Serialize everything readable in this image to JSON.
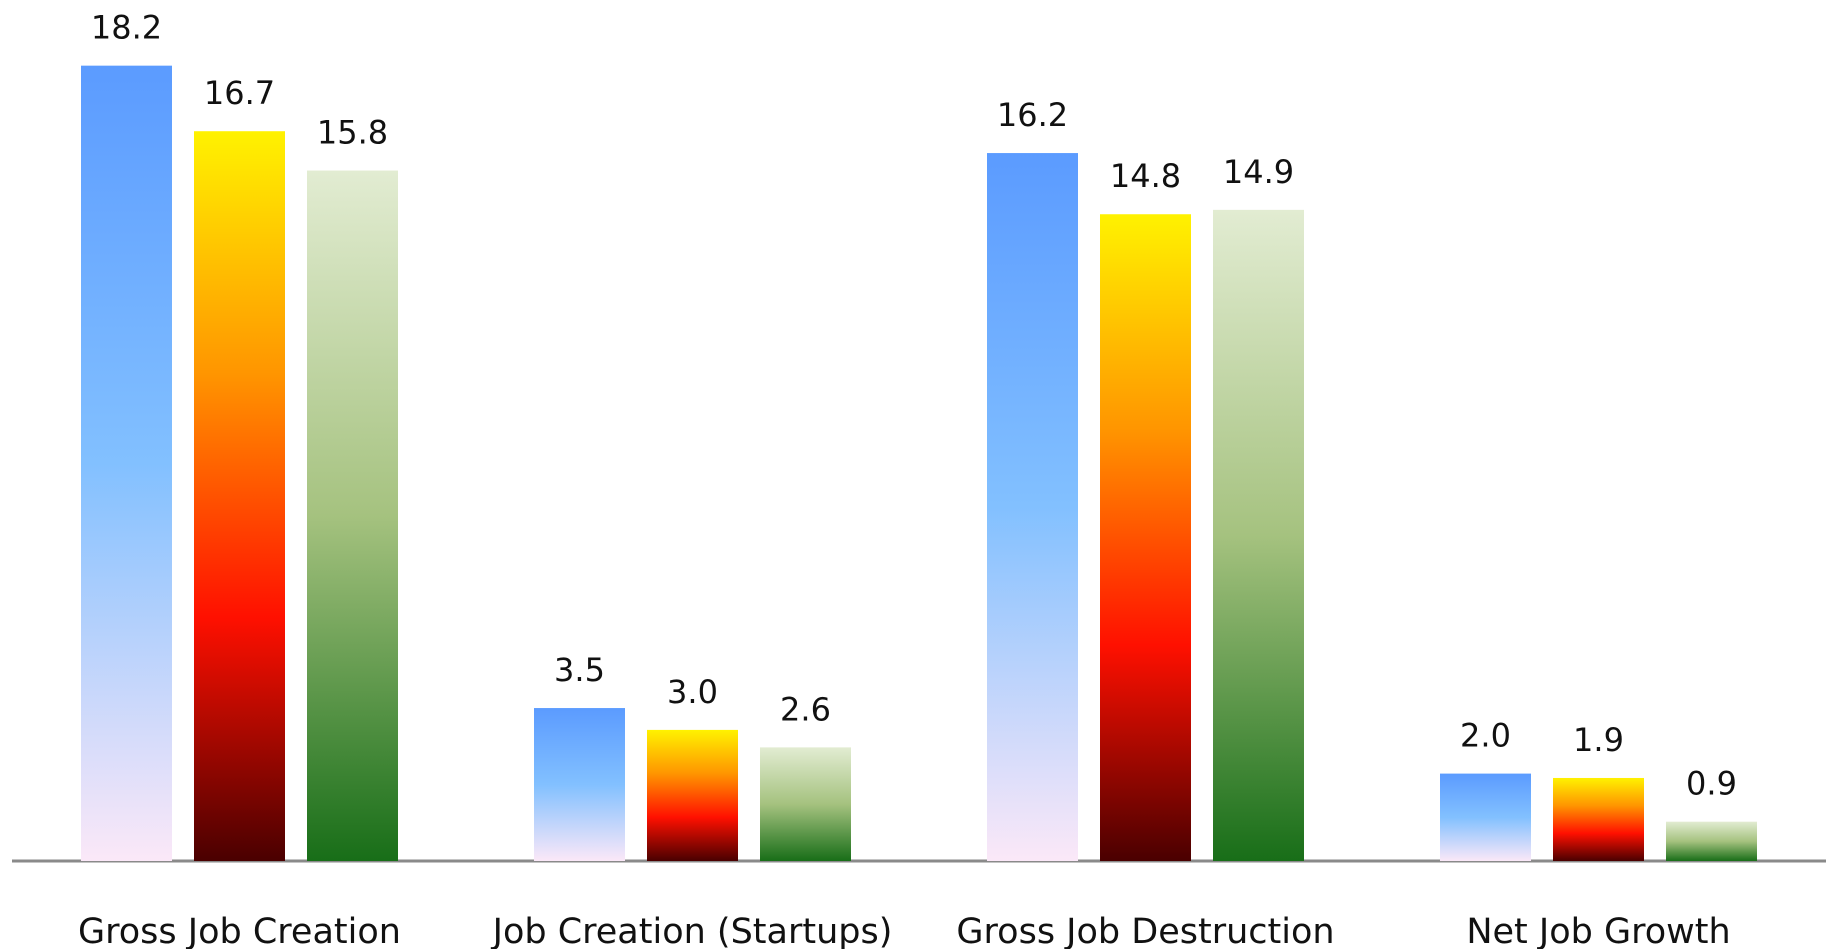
{
  "chart_data": {
    "type": "bar",
    "categories": [
      "Gross Job Creation",
      "Job Creation (Startups)",
      "Gross Job Destruction",
      "Net Job Growth"
    ],
    "series": [
      {
        "colors": [
          "#5b9bff",
          "#82c0ff",
          "#fbe8f8"
        ],
        "values": [
          18.2,
          3.5,
          16.2,
          2.0
        ],
        "value_labels": [
          "18.2",
          "3.5",
          "16.2",
          "2.0"
        ]
      },
      {
        "colors": [
          "#fff200",
          "#ff9500",
          "#ff1000",
          "#4a0000"
        ],
        "values": [
          16.7,
          3.0,
          14.8,
          1.9
        ],
        "value_labels": [
          "16.7",
          "3.0",
          "14.8",
          "1.9"
        ]
      },
      {
        "colors": [
          "#e2ecd2",
          "#a5c27f",
          "#186e18"
        ],
        "values": [
          15.8,
          2.6,
          14.9,
          0.9
        ],
        "value_labels": [
          "15.8",
          "2.6",
          "14.9",
          "0.9"
        ]
      }
    ]
  }
}
